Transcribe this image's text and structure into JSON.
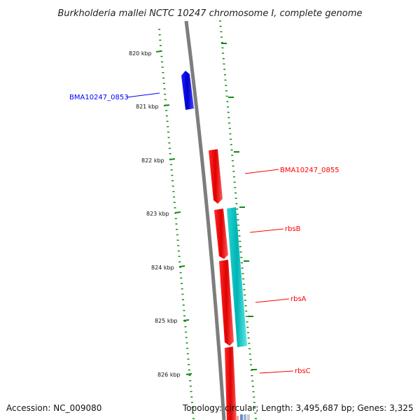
{
  "title": "Burkholderia mallei NCTC 10247 chromosome I, complete genome",
  "footer": {
    "accession": "Accession: NC_009080",
    "topology": "Topology: circular; Length: 3,495,687 bp; Genes: 3,325"
  },
  "scale": {
    "unit": "kbp",
    "ticks": [
      "820 kbp",
      "821 kbp",
      "822 kbp",
      "823 kbp",
      "824 kbp",
      "825 kbp",
      "826 kbp"
    ]
  },
  "colors": {
    "backbone": "#808080",
    "tick": "#138a13",
    "forward_gene": "#ff0000",
    "reverse_gene": "#0000ff",
    "rrna_gene": "#00c8c8"
  },
  "genes": [
    {
      "label": "BMA10247_0853",
      "strand": "reverse",
      "color": "#0000ff"
    },
    {
      "label": "BMA10247_0855",
      "strand": "forward",
      "color": "#ff0000"
    },
    {
      "label": "rbsB",
      "strand": "forward",
      "color": "#ff0000"
    },
    {
      "label": "rbsA",
      "strand": "forward",
      "color": "#ff0000"
    },
    {
      "label": "rbsC",
      "strand": "forward",
      "color": "#ff0000"
    }
  ]
}
